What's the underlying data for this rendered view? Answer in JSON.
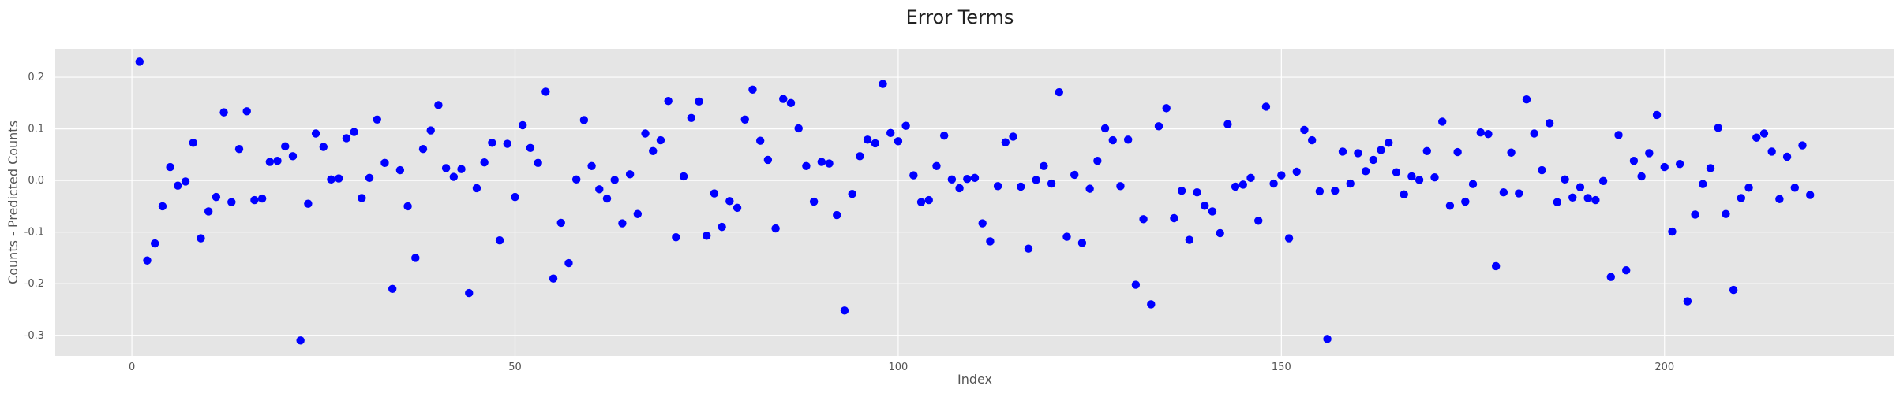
{
  "chart_data": {
    "type": "scatter",
    "title": "Error Terms",
    "xlabel": "Index",
    "ylabel": "Counts - Predicted Counts",
    "xlim": [
      -10,
      230
    ],
    "ylim": [
      -0.34,
      0.255
    ],
    "x_ticks": [
      0,
      50,
      100,
      150,
      200
    ],
    "y_ticks": [
      -0.3,
      -0.2,
      -0.1,
      0.0,
      0.1,
      0.2
    ],
    "x_tick_labels": [
      "0",
      "50",
      "100",
      "150",
      "200"
    ],
    "y_tick_labels": [
      "-0.3",
      "-0.2",
      "-0.1",
      "0.0",
      "0.1",
      "0.2"
    ],
    "grid": true,
    "background": "#e5e5e5",
    "marker_color": "#0000ff",
    "series": [
      {
        "x": [
          1,
          2,
          3,
          4,
          5,
          6,
          7,
          8,
          9,
          10,
          11,
          12,
          13,
          14,
          15,
          16,
          17,
          18,
          19,
          20,
          21,
          22,
          23,
          24,
          25,
          26,
          27,
          28,
          29,
          30,
          31,
          32,
          33,
          34,
          35,
          36,
          37,
          38,
          39,
          40,
          41,
          42,
          43,
          44,
          45,
          46,
          47,
          48,
          49,
          50,
          51,
          52,
          53,
          54,
          55,
          56,
          57,
          58,
          59,
          60,
          61,
          62,
          63,
          64,
          65,
          66,
          67,
          68,
          69,
          70,
          71,
          72,
          73,
          74,
          75,
          76,
          77,
          78,
          79,
          80,
          81,
          82,
          83,
          84,
          85,
          86,
          87,
          88,
          89,
          90,
          91,
          92,
          93,
          94,
          95,
          96,
          97,
          98,
          99,
          100,
          101,
          102,
          103,
          104,
          105,
          106,
          107,
          108,
          109,
          110,
          111,
          112,
          113,
          114,
          115,
          116,
          117,
          118,
          119,
          120,
          121,
          122,
          123,
          124,
          125,
          126,
          127,
          128,
          129,
          130,
          131,
          132,
          133,
          134,
          135,
          136,
          137,
          138,
          139,
          140,
          141,
          142,
          143,
          144,
          145,
          146,
          147,
          148,
          149,
          150,
          151,
          152,
          153,
          154,
          155,
          156,
          157,
          158,
          159,
          160,
          161,
          162,
          163,
          164,
          165,
          166,
          167,
          168,
          169,
          170,
          171,
          172,
          173,
          174,
          175,
          176,
          177,
          178,
          179,
          180,
          181,
          182,
          183,
          184,
          185,
          186,
          187,
          188,
          189,
          190,
          191,
          192,
          193,
          194,
          195,
          196,
          197,
          198,
          199,
          200,
          201,
          202,
          203,
          204,
          205,
          206,
          207,
          208,
          209,
          210,
          211,
          212,
          213,
          214,
          215,
          216,
          217,
          218,
          219
        ],
        "y": [
          0.23,
          -0.155,
          -0.122,
          -0.05,
          0.026,
          -0.01,
          -0.002,
          0.073,
          -0.112,
          -0.06,
          -0.032,
          0.132,
          -0.042,
          0.061,
          0.134,
          -0.038,
          -0.035,
          0.036,
          0.038,
          0.066,
          0.047,
          -0.31,
          -0.045,
          0.091,
          0.065,
          0.002,
          0.004,
          0.082,
          0.094,
          -0.034,
          0.005,
          0.118,
          0.034,
          -0.21,
          0.02,
          -0.05,
          -0.15,
          0.061,
          0.097,
          0.146,
          0.024,
          0.007,
          0.022,
          -0.218,
          -0.015,
          0.035,
          0.073,
          -0.116,
          0.071,
          -0.032,
          0.107,
          0.063,
          0.034,
          0.172,
          -0.19,
          -0.082,
          -0.16,
          0.002,
          0.117,
          0.028,
          -0.017,
          -0.035,
          0.001,
          -0.083,
          0.012,
          -0.065,
          0.091,
          0.057,
          0.078,
          0.154,
          -0.11,
          0.008,
          0.121,
          0.153,
          -0.107,
          -0.025,
          -0.09,
          -0.04,
          -0.053,
          0.118,
          0.176,
          0.077,
          0.04,
          -0.093,
          0.158,
          0.15,
          0.101,
          0.028,
          -0.041,
          0.036,
          0.033,
          -0.067,
          -0.252,
          -0.026,
          0.047,
          0.079,
          0.072,
          0.187,
          0.092,
          0.076,
          0.106,
          0.01,
          -0.042,
          -0.038,
          0.028,
          0.087,
          0.002,
          -0.015,
          0.003,
          0.005,
          -0.083,
          -0.118,
          -0.011,
          0.074,
          0.085,
          -0.012,
          -0.132,
          0.001,
          0.028,
          -0.006,
          0.171,
          -0.109,
          0.011,
          -0.121,
          -0.016,
          0.038,
          0.101,
          0.078,
          -0.011,
          0.079,
          -0.202,
          -0.075,
          -0.24,
          0.105,
          0.14,
          -0.073,
          -0.02,
          -0.115,
          -0.023,
          -0.049,
          -0.06,
          -0.102,
          0.109,
          -0.012,
          -0.008,
          0.005,
          -0.078,
          0.143,
          -0.006,
          0.01,
          -0.112,
          0.017,
          0.098,
          0.078,
          -0.021,
          -0.307,
          -0.02,
          0.056,
          -0.006,
          0.053,
          0.018,
          0.04,
          0.059,
          0.073,
          0.016,
          -0.027,
          0.008,
          0.001,
          0.057,
          0.006,
          0.114,
          -0.049,
          0.055,
          -0.041,
          -0.007,
          0.093,
          0.09,
          -0.166,
          -0.023,
          0.054,
          -0.025,
          0.157,
          0.091,
          0.02,
          0.111,
          -0.042,
          0.002,
          -0.033,
          -0.013,
          -0.034,
          -0.038,
          -0.001,
          -0.187,
          0.088,
          -0.174,
          0.038,
          0.008,
          0.053,
          0.127,
          0.026,
          -0.099,
          0.032,
          -0.234,
          -0.066,
          -0.007,
          0.024,
          0.102,
          -0.065,
          -0.212,
          -0.034,
          -0.014,
          0.083,
          0.091,
          0.056,
          -0.036,
          0.046,
          -0.014,
          0.068,
          -0.028
        ]
      }
    ]
  }
}
